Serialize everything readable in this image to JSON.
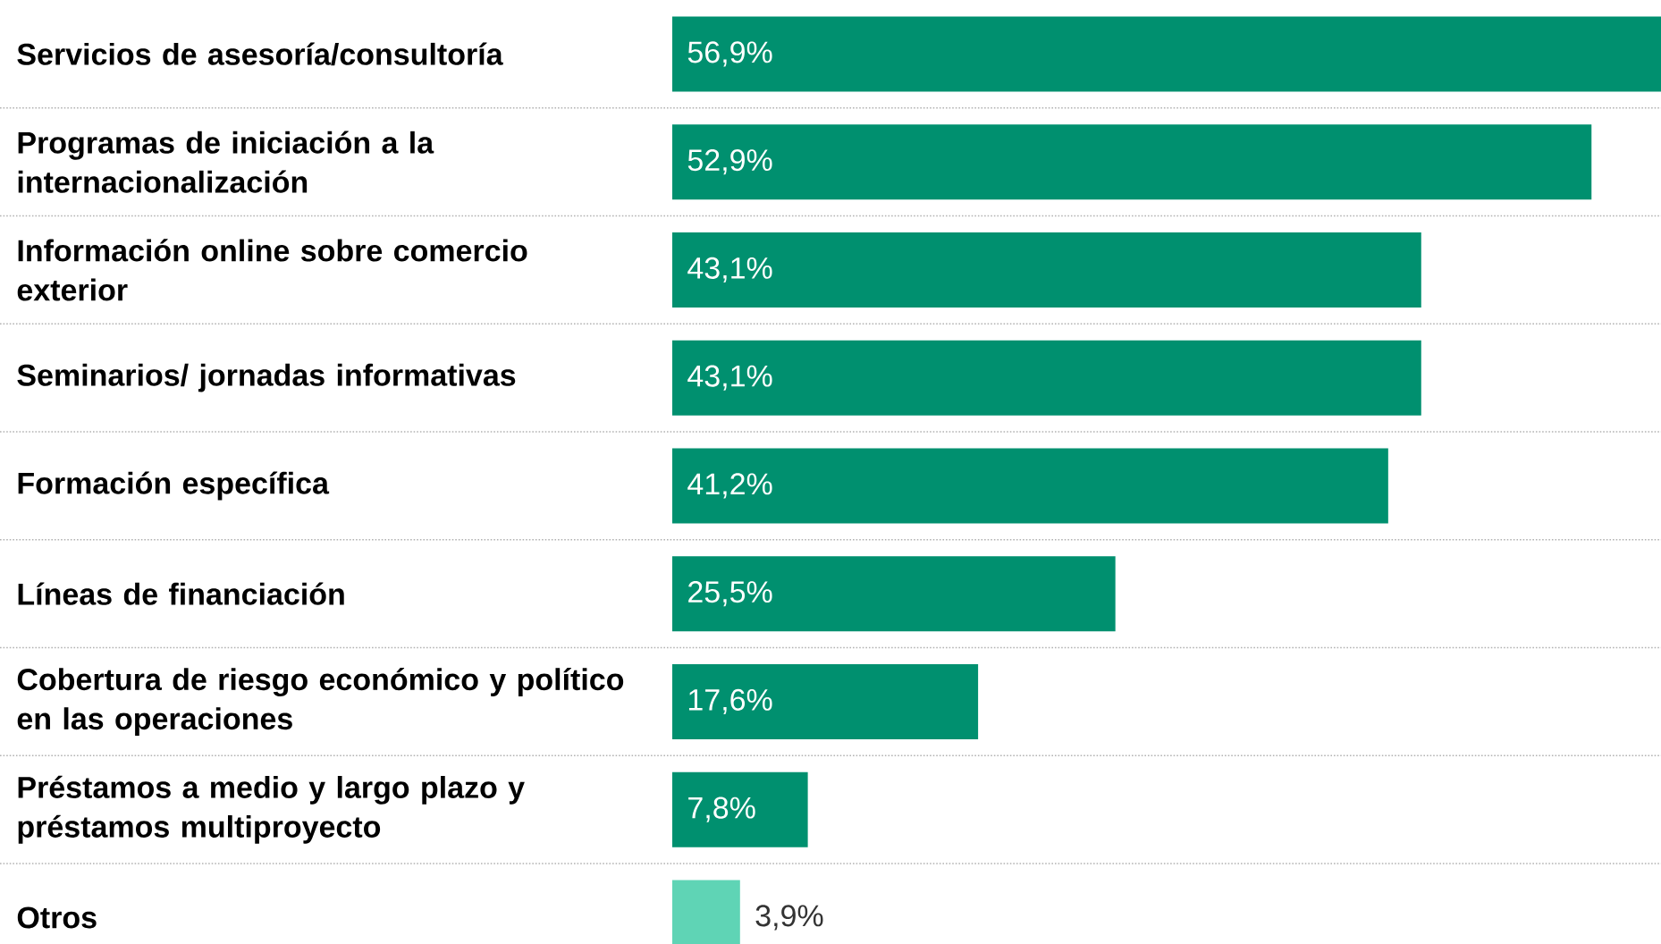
{
  "chart_data": {
    "type": "bar",
    "orientation": "horizontal",
    "categories": [
      "Servicios de asesoría/consultoría",
      "Programas de iniciación a la internacionalización",
      "Información online sobre comercio exterior",
      "Seminarios/ jornadas informativas",
      "Formación específica",
      "Líneas de financiación",
      "Cobertura de riesgo económico y político en las operaciones",
      "Préstamos a medio y largo plazo y préstamos multiproyecto",
      "Otros"
    ],
    "values": [
      56.9,
      52.9,
      43.1,
      43.1,
      41.2,
      25.5,
      17.6,
      7.8,
      3.9
    ],
    "value_labels": [
      "56,9%",
      "52,9%",
      "43,1%",
      "43,1%",
      "41,2%",
      "25,5%",
      "17,6%",
      "7,8%",
      "3,9%"
    ],
    "colors": [
      "#00906f",
      "#00906f",
      "#00906f",
      "#00906f",
      "#00906f",
      "#00906f",
      "#00906f",
      "#00906f",
      "#5fd4b5"
    ]
  }
}
